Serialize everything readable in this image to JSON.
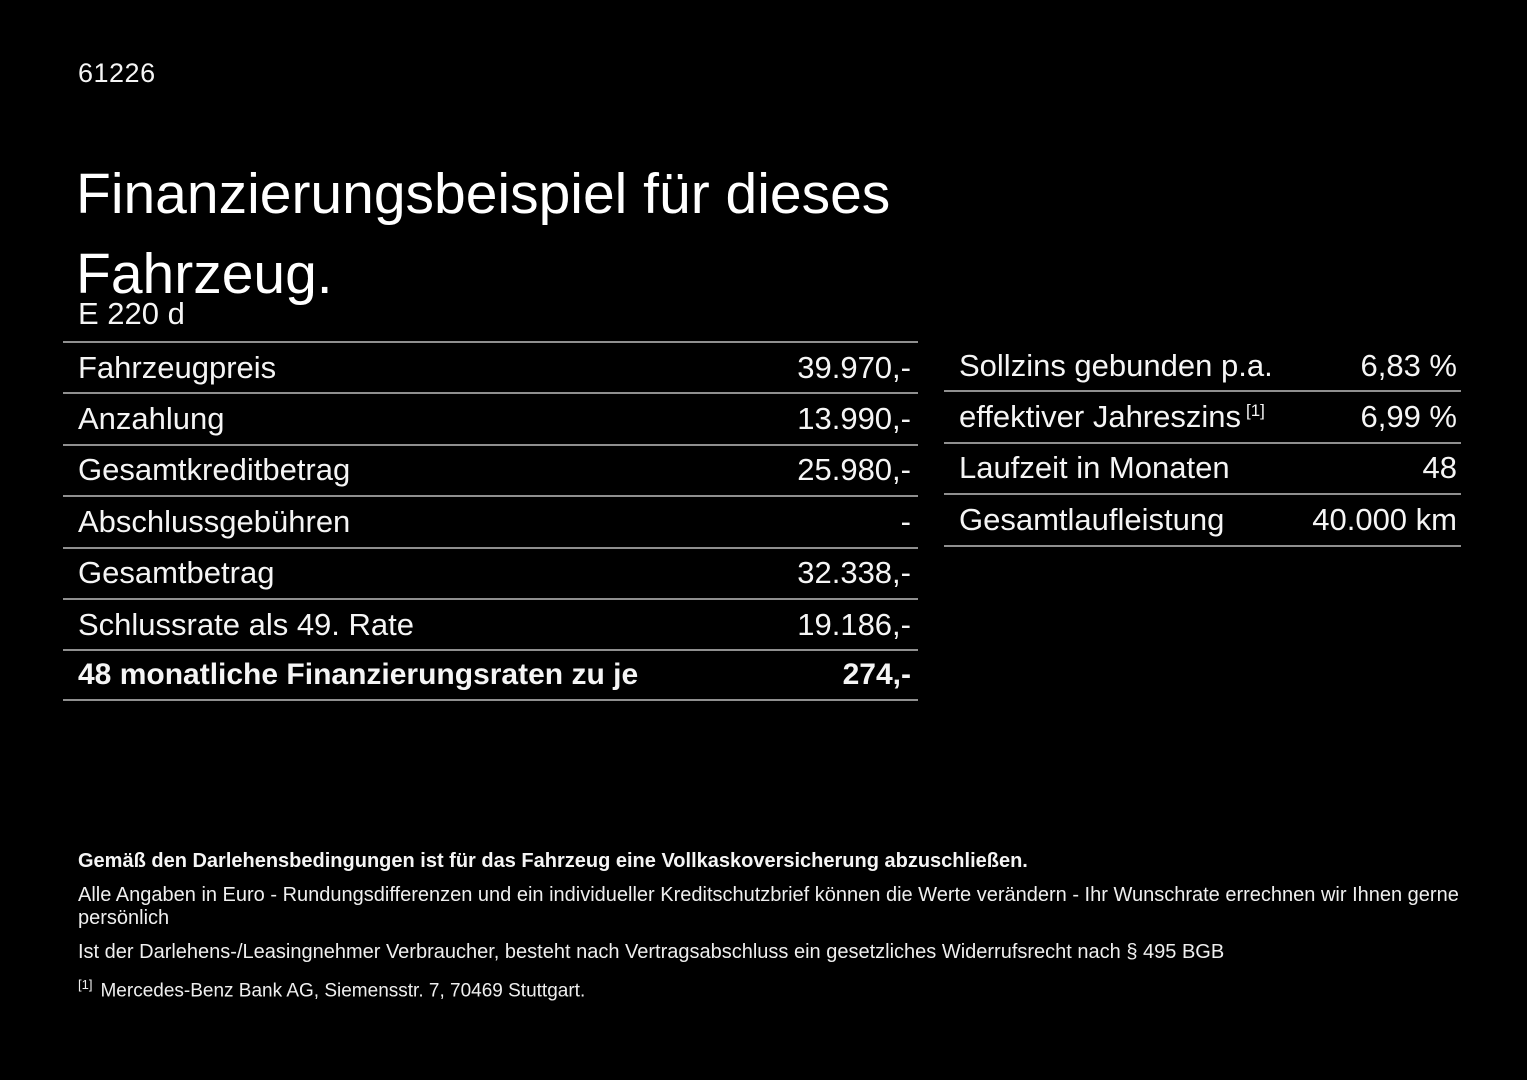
{
  "page": {
    "ref_number": "61226",
    "title": "Finanzierungsbeispiel für dieses Fahrzeug.",
    "model": "E 220 d"
  },
  "finance_table": {
    "rows": [
      {
        "label": "Fahrzeugpreis",
        "value": "39.970,-"
      },
      {
        "label": "Anzahlung",
        "value": "13.990,-"
      },
      {
        "label": "Gesamtkreditbetrag",
        "value": "25.980,-"
      },
      {
        "label": "Abschlussgebühren",
        "value": "-"
      },
      {
        "label": "Gesamtbetrag",
        "value": "32.338,-"
      },
      {
        "label": "Schlussrate als 49. Rate",
        "value": "19.186,-"
      },
      {
        "label": "48 monatliche Finanzierungsraten zu je",
        "value": "274,-"
      }
    ]
  },
  "conditions_table": {
    "rows": [
      {
        "label": "Sollzins gebunden p.a.",
        "marker": "",
        "value": "6,83 %"
      },
      {
        "label": "effektiver Jahreszins",
        "marker": "[1]",
        "value": "6,99 %"
      },
      {
        "label": "Laufzeit in Monaten",
        "marker": "",
        "value": "48"
      },
      {
        "label": "Gesamtlaufleistung",
        "marker": "",
        "value": "40.000 km"
      }
    ]
  },
  "footer": {
    "insurance_note": "Gemäß den Darlehensbedingungen ist für das Fahrzeug eine Vollkaskoversicherung abzuschließen.",
    "note_line1": "Alle Angaben in Euro - Rundungsdifferenzen und ein individueller Kreditschutzbrief können die Werte verändern - Ihr Wunschrate errechnen wir Ihnen gerne persönlich",
    "note_line2": "Ist der Darlehens-/Leasingnehmer Verbraucher, besteht nach Vertragsabschluss ein gesetzliches Widerrufsrecht nach § 495 BGB",
    "footnote_marker": "[1]",
    "footnote_text": "Mercedes-Benz Bank AG, Siemensstr. 7, 70469 Stuttgart."
  },
  "colors": {
    "background": "#000000",
    "text": "#f5f5f5",
    "divider": "#8f8f8f"
  }
}
